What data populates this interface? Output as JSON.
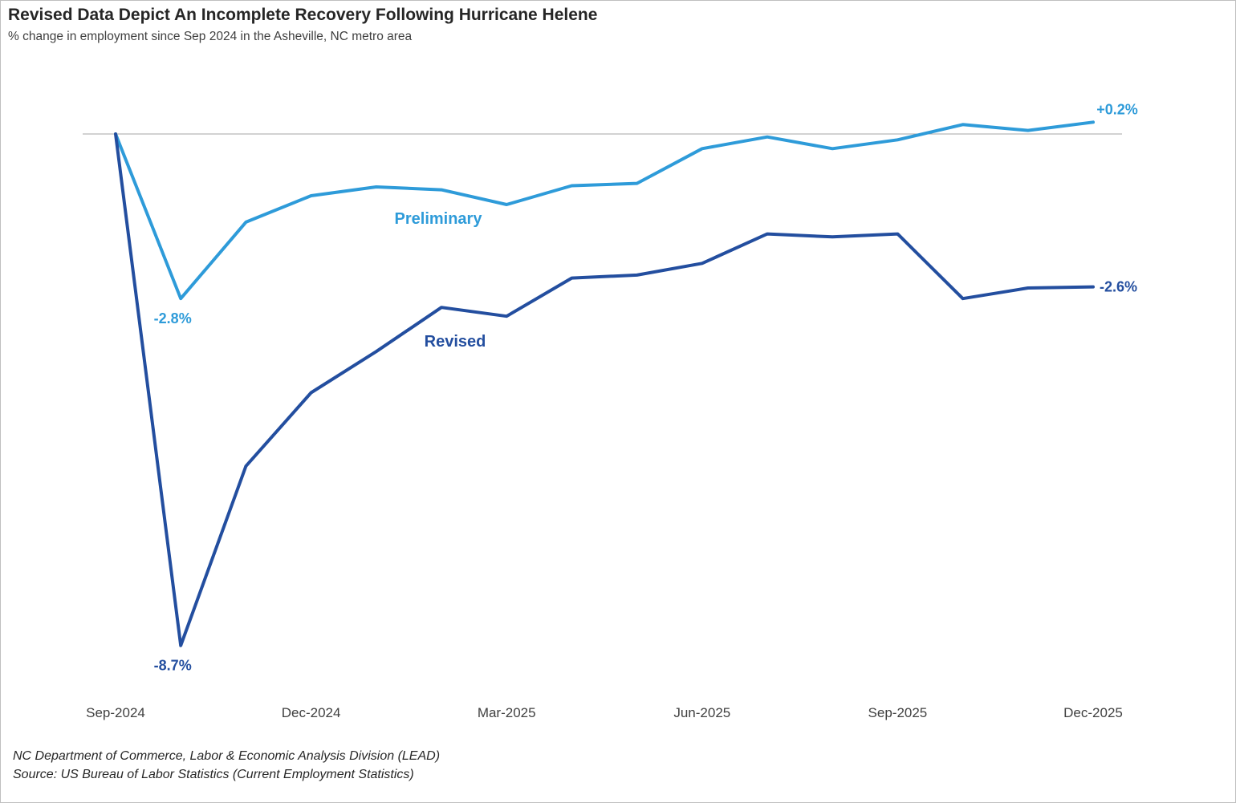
{
  "title": "Revised Data Depict An Incomplete Recovery Following Hurricane Helene",
  "subtitle": "% change in employment since Sep 2024 in the Asheville, NC metro area",
  "footnotes": {
    "line1": "NC Department of Commerce, Labor & Economic Analysis Division (LEAD)",
    "line2": "Source: US Bureau of Labor Statistics (Current Employment Statistics)"
  },
  "chart_data": {
    "type": "line",
    "title": "Revised Data Depict An Incomplete Recovery Following Hurricane Helene",
    "subtitle": "% change in employment since Sep 2024 in the Asheville, NC metro area",
    "xlabel": "",
    "ylabel": "",
    "x": [
      "Sep-2024",
      "Oct-2024",
      "Nov-2024",
      "Dec-2024",
      "Jan-2025",
      "Feb-2025",
      "Mar-2025",
      "Apr-2025",
      "May-2025",
      "Jun-2025",
      "Jul-2025",
      "Aug-2025",
      "Sep-2025",
      "Oct-2025",
      "Nov-2025",
      "Dec-2025"
    ],
    "x_tick_labels": [
      "Sep-2024",
      "Dec-2024",
      "Mar-2025",
      "Jun-2025",
      "Sep-2025",
      "Dec-2025"
    ],
    "ylim": [
      -9.3,
      0.6
    ],
    "zero_line": true,
    "grid": false,
    "legend": "none (inline series labels)",
    "series": [
      {
        "name": "Preliminary",
        "color": "#2E9BD9",
        "values": [
          0,
          -2.8,
          -1.5,
          -1.05,
          -0.9,
          -0.95,
          -1.2,
          -0.88,
          -0.84,
          -0.25,
          -0.05,
          -0.25,
          -0.1,
          0.16,
          0.06,
          0.2
        ],
        "end_labels": {
          "min": "-2.8%",
          "last": "+0.2%"
        }
      },
      {
        "name": "Revised",
        "color": "#234E9F",
        "values": [
          0,
          -8.7,
          -5.65,
          -4.4,
          -3.7,
          -2.95,
          -3.1,
          -2.45,
          -2.4,
          -2.2,
          -1.7,
          -1.75,
          -1.7,
          -2.8,
          -2.62,
          -2.6
        ],
        "end_labels": {
          "min": "-8.7%",
          "last": "-2.6%"
        }
      }
    ]
  }
}
